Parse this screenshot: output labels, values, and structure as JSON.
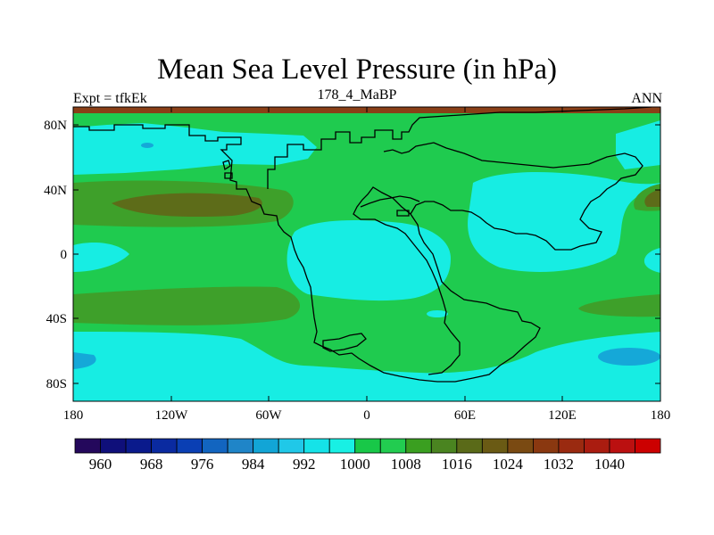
{
  "title": "Mean Sea Level Pressure (in hPa)",
  "left_label": "Expt = tfkEk",
  "center_label": "178_4_MaBP",
  "right_label": "ANN",
  "lat_ticks": [
    "80N",
    "40N",
    "0",
    "40S",
    "80S"
  ],
  "lon_ticks": [
    "180",
    "120W",
    "60W",
    "0",
    "60E",
    "120E",
    "180"
  ],
  "colorbar": {
    "labels": [
      "960",
      "968",
      "976",
      "984",
      "992",
      "1000",
      "1008",
      "1016",
      "1024",
      "1032",
      "1040"
    ],
    "colors": [
      "#24085c",
      "#0f0f7a",
      "#0a1a8c",
      "#0a2aa0",
      "#0a3fb4",
      "#1265c0",
      "#1f85c8",
      "#12a5d6",
      "#20c8e8",
      "#15e3e8",
      "#18f0e4",
      "#18c848",
      "#22cc50",
      "#3a9f20",
      "#4a8420",
      "#5a6a18",
      "#6a5a14",
      "#7a4a12",
      "#8a3810",
      "#9a2a10",
      "#aa1c10",
      "#bb1010",
      "#cc0000"
    ]
  },
  "field_colors": {
    "cyan": "#17ede3",
    "green": "#1fcb4f",
    "dark_green": "#3ea02a",
    "olive": "#5d6c19",
    "blue": "#15a8d8",
    "top_strip": "#8a3f17"
  }
}
